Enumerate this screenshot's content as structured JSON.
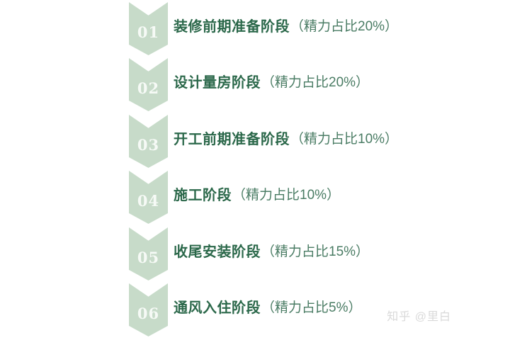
{
  "page": {
    "background": "#ffffff"
  },
  "flow": {
    "type": "vertical-chevron-process",
    "steps": [
      {
        "number": "01",
        "stage": "装修前期准备阶段",
        "note": "（精力占比20%）"
      },
      {
        "number": "02",
        "stage": "设计量房阶段",
        "note": "（精力占比20%）"
      },
      {
        "number": "03",
        "stage": "开工前期准备阶段",
        "note": "（精力占比10%）"
      },
      {
        "number": "04",
        "stage": "施工阶段",
        "note": "（精力占比10%）"
      },
      {
        "number": "05",
        "stage": "收尾安装阶段",
        "note": "（精力占比15%）"
      },
      {
        "number": "06",
        "stage": "通风入住阶段",
        "note": "（精力占比5%）"
      }
    ],
    "colors": {
      "chevron_fill": "#c7dbc9",
      "step_number": "#f6faf6",
      "stage_text": "#2b684a",
      "note_text": "#4a7c64"
    }
  },
  "watermark": {
    "text": "知乎 @里白",
    "color": "#d9d9d9"
  }
}
